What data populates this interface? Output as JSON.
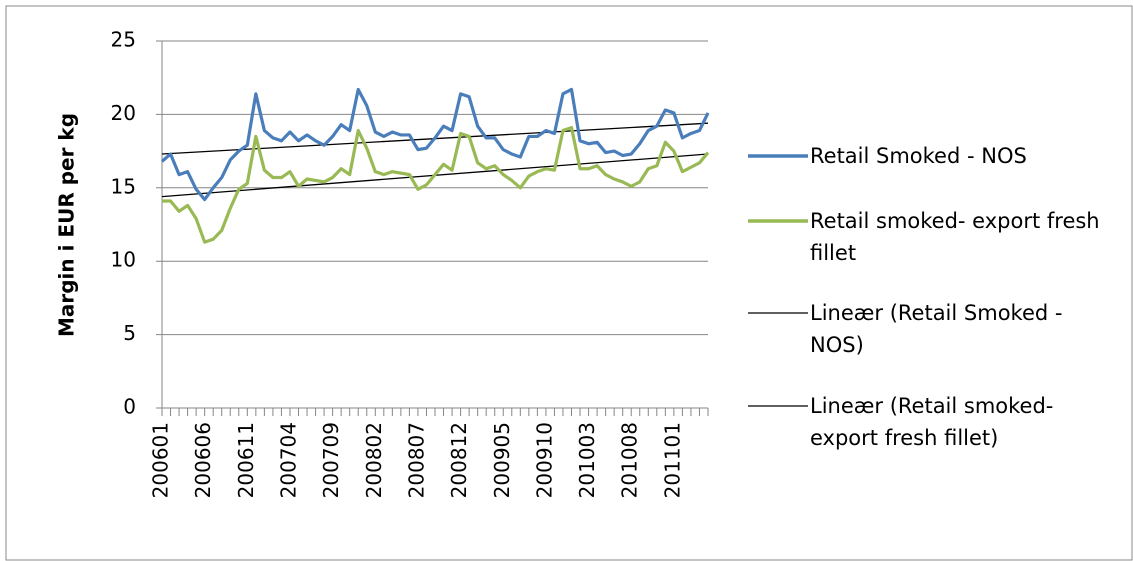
{
  "chart_data": {
    "type": "line",
    "y_label": "Margin i EUR per kg",
    "categories": [
      "200601",
      null,
      null,
      null,
      null,
      "200606",
      null,
      null,
      null,
      null,
      "200611",
      null,
      null,
      null,
      null,
      "200704",
      null,
      null,
      null,
      null,
      "200709",
      null,
      null,
      null,
      null,
      "200802",
      null,
      null,
      null,
      null,
      "200807",
      null,
      null,
      null,
      null,
      "200812",
      null,
      null,
      null,
      null,
      "200905",
      null,
      null,
      null,
      null,
      "200910",
      null,
      null,
      null,
      null,
      "201003",
      null,
      null,
      null,
      null,
      "201008",
      null,
      null,
      null,
      null,
      "201101",
      null,
      null,
      null,
      null
    ],
    "series": [
      {
        "name": "Retail Smoked - NOS",
        "color": "#4a7ebb",
        "values": [
          16.8,
          17.3,
          15.9,
          16.1,
          14.9,
          14.2,
          15.0,
          15.7,
          16.9,
          17.5,
          17.9,
          21.4,
          18.9,
          18.4,
          18.2,
          18.8,
          18.2,
          18.6,
          18.2,
          17.9,
          18.5,
          19.3,
          18.9,
          21.7,
          20.6,
          18.8,
          18.5,
          18.8,
          18.6,
          18.6,
          17.6,
          17.7,
          18.4,
          19.2,
          18.9,
          21.4,
          21.2,
          19.2,
          18.4,
          18.4,
          17.6,
          17.3,
          17.1,
          18.5,
          18.5,
          18.9,
          18.7,
          21.4,
          21.7,
          18.2,
          18.0,
          18.1,
          17.4,
          17.5,
          17.2,
          17.3,
          18.0,
          18.9,
          19.2,
          20.3,
          20.1,
          18.4,
          18.7,
          18.9,
          20.1
        ]
      },
      {
        "name": "Retail smoked- export fresh fillet",
        "color": "#98b954",
        "values": [
          14.1,
          14.1,
          13.4,
          13.8,
          12.9,
          11.3,
          11.5,
          12.1,
          13.6,
          14.9,
          15.3,
          18.5,
          16.2,
          15.7,
          15.7,
          16.1,
          15.1,
          15.6,
          15.5,
          15.4,
          15.7,
          16.3,
          15.9,
          18.9,
          17.7,
          16.1,
          15.9,
          16.1,
          16.0,
          15.9,
          14.9,
          15.2,
          15.9,
          16.6,
          16.2,
          18.7,
          18.5,
          16.7,
          16.3,
          16.5,
          15.9,
          15.5,
          15.0,
          15.8,
          16.1,
          16.3,
          16.2,
          18.9,
          19.1,
          16.3,
          16.3,
          16.5,
          15.9,
          15.6,
          15.4,
          15.1,
          15.4,
          16.3,
          16.5,
          18.1,
          17.5,
          16.1,
          16.4,
          16.7,
          17.4
        ]
      }
    ],
    "trendlines": [
      {
        "name": "Lineær (Retail Smoked - NOS)",
        "color": "#000000",
        "start": 17.3,
        "end": 19.4
      },
      {
        "name": "Lineær (Retail smoked- export fresh fillet)",
        "color": "#000000",
        "start": 14.4,
        "end": 17.3
      }
    ],
    "ylim": [
      0,
      25
    ],
    "yticks": [
      0,
      5,
      10,
      15,
      20,
      25
    ],
    "grid": true
  }
}
